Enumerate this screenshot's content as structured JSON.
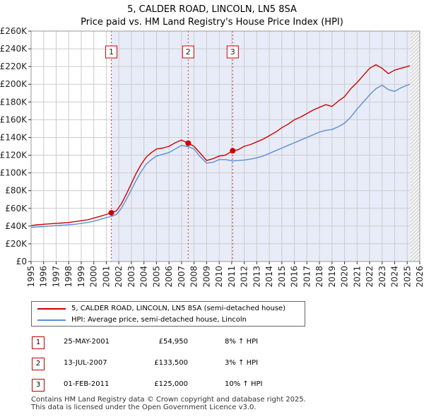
{
  "title": {
    "line1": "5, CALDER ROAD, LINCOLN, LN5 8SA",
    "line2": "Price paid vs. HM Land Registry's House Price Index (HPI)"
  },
  "colors": {
    "property": "#cc0000",
    "hpi": "#5b8fd4",
    "shade": "#e8ecf8",
    "grid": "#cccccc"
  },
  "chart_data": {
    "type": "line",
    "title": "5, CALDER ROAD, LINCOLN, LN5 8SA",
    "xlabel": "",
    "ylabel": "",
    "xlim": [
      1995,
      2026
    ],
    "ylim": [
      0,
      260000
    ],
    "x_ticks": [
      "1995",
      "1996",
      "1997",
      "1998",
      "1999",
      "2000",
      "2001",
      "2002",
      "2003",
      "2004",
      "2005",
      "2006",
      "2007",
      "2008",
      "2009",
      "2010",
      "2011",
      "2012",
      "2013",
      "2014",
      "2015",
      "2016",
      "2017",
      "2018",
      "2019",
      "2020",
      "2021",
      "2022",
      "2023",
      "2024",
      "2025",
      "2026"
    ],
    "y_ticks": [
      {
        "value": 0,
        "label": "£0"
      },
      {
        "value": 20000,
        "label": "£20K"
      },
      {
        "value": 40000,
        "label": "£40K"
      },
      {
        "value": 60000,
        "label": "£60K"
      },
      {
        "value": 80000,
        "label": "£80K"
      },
      {
        "value": 100000,
        "label": "£100K"
      },
      {
        "value": 120000,
        "label": "£120K"
      },
      {
        "value": 140000,
        "label": "£140K"
      },
      {
        "value": 160000,
        "label": "£160K"
      },
      {
        "value": 180000,
        "label": "£180K"
      },
      {
        "value": 200000,
        "label": "£200K"
      },
      {
        "value": 220000,
        "label": "£220K"
      },
      {
        "value": 240000,
        "label": "£240K"
      },
      {
        "value": 260000,
        "label": "£260K"
      }
    ],
    "shaded_range": [
      2001.4,
      2025.25
    ],
    "series": [
      {
        "name": "5, CALDER ROAD, LINCOLN, LN5 8SA (semi-detached house)",
        "color": "#cc0000",
        "x": [
          1995,
          1995.5,
          1996,
          1996.5,
          1997,
          1997.5,
          1998,
          1998.5,
          1999,
          1999.5,
          2000,
          2000.5,
          2001,
          2001.4,
          2001.8,
          2002.2,
          2002.6,
          2003,
          2003.4,
          2003.8,
          2004.2,
          2004.6,
          2005,
          2005.5,
          2006,
          2006.5,
          2007,
          2007.53,
          2008,
          2008.5,
          2009,
          2009.5,
          2010,
          2010.5,
          2011.08,
          2011.5,
          2012,
          2012.5,
          2013,
          2013.5,
          2014,
          2014.5,
          2015,
          2015.5,
          2016,
          2016.5,
          2017,
          2017.5,
          2018,
          2018.5,
          2019,
          2019.5,
          2020,
          2020.5,
          2021,
          2021.5,
          2022,
          2022.5,
          2023,
          2023.5,
          2024,
          2024.5,
          2025,
          2025.2
        ],
        "values": [
          40500,
          41500,
          42000,
          42500,
          43000,
          43500,
          44000,
          45000,
          46000,
          47000,
          49000,
          51000,
          53000,
          54950,
          57000,
          65000,
          76000,
          88000,
          100000,
          110000,
          118000,
          123000,
          127000,
          128000,
          130000,
          134000,
          137000,
          133500,
          130000,
          122000,
          114000,
          116000,
          119000,
          120000,
          125000,
          126000,
          130000,
          132000,
          135000,
          138000,
          142000,
          146000,
          151000,
          155000,
          160000,
          163000,
          167000,
          171000,
          174000,
          177000,
          175000,
          181000,
          186000,
          195000,
          202000,
          210000,
          218000,
          222000,
          218000,
          212000,
          216000,
          218000,
          220000,
          221000
        ]
      },
      {
        "name": "HPI: Average price, semi-detached house, Lincoln",
        "color": "#5b8fd4",
        "x": [
          1995,
          1995.5,
          1996,
          1996.5,
          1997,
          1997.5,
          1998,
          1998.5,
          1999,
          1999.5,
          2000,
          2000.5,
          2001,
          2001.4,
          2001.8,
          2002.2,
          2002.6,
          2003,
          2003.4,
          2003.8,
          2004.2,
          2004.6,
          2005,
          2005.5,
          2006,
          2006.5,
          2007,
          2007.53,
          2008,
          2008.5,
          2009,
          2009.5,
          2010,
          2010.5,
          2011.08,
          2011.5,
          2012,
          2012.5,
          2013,
          2013.5,
          2014,
          2014.5,
          2015,
          2015.5,
          2016,
          2016.5,
          2017,
          2017.5,
          2018,
          2018.5,
          2019,
          2019.5,
          2020,
          2020.5,
          2021,
          2021.5,
          2022,
          2022.5,
          2023,
          2023.5,
          2024,
          2024.5,
          2025,
          2025.2
        ],
        "values": [
          38500,
          39000,
          39500,
          40000,
          40500,
          41000,
          41500,
          42000,
          43000,
          44000,
          45500,
          47500,
          49500,
          50900,
          53000,
          60000,
          70000,
          81000,
          92000,
          102000,
          110000,
          115000,
          119000,
          121000,
          123000,
          127000,
          131000,
          129600,
          127000,
          118000,
          111000,
          112000,
          115000,
          115000,
          113600,
          114000,
          114500,
          115500,
          117000,
          119000,
          122000,
          125000,
          128000,
          131000,
          134000,
          137000,
          140000,
          143000,
          146000,
          148000,
          149000,
          152000,
          156000,
          163000,
          172000,
          180000,
          188000,
          195000,
          199000,
          194000,
          192000,
          196000,
          199000,
          200000
        ]
      }
    ],
    "sales": [
      {
        "id": "1",
        "x": 2001.4,
        "value": 54950
      },
      {
        "id": "2",
        "x": 2007.53,
        "value": 133500
      },
      {
        "id": "3",
        "x": 2011.08,
        "value": 125000
      }
    ]
  },
  "legend": {
    "property_label": "5, CALDER ROAD, LINCOLN, LN5 8SA (semi-detached house)",
    "hpi_label": "HPI: Average price, semi-detached house, Lincoln"
  },
  "sales_table": [
    {
      "num": "1",
      "date": "25-MAY-2001",
      "price": "£54,950",
      "hpi": "8% ↑ HPI"
    },
    {
      "num": "2",
      "date": "13-JUL-2007",
      "price": "£133,500",
      "hpi": "3% ↑ HPI"
    },
    {
      "num": "3",
      "date": "01-FEB-2011",
      "price": "£125,000",
      "hpi": "10% ↑ HPI"
    }
  ],
  "footer": {
    "line1": "Contains HM Land Registry data © Crown copyright and database right 2025.",
    "line2": "This data is licensed under the Open Government Licence v3.0."
  }
}
